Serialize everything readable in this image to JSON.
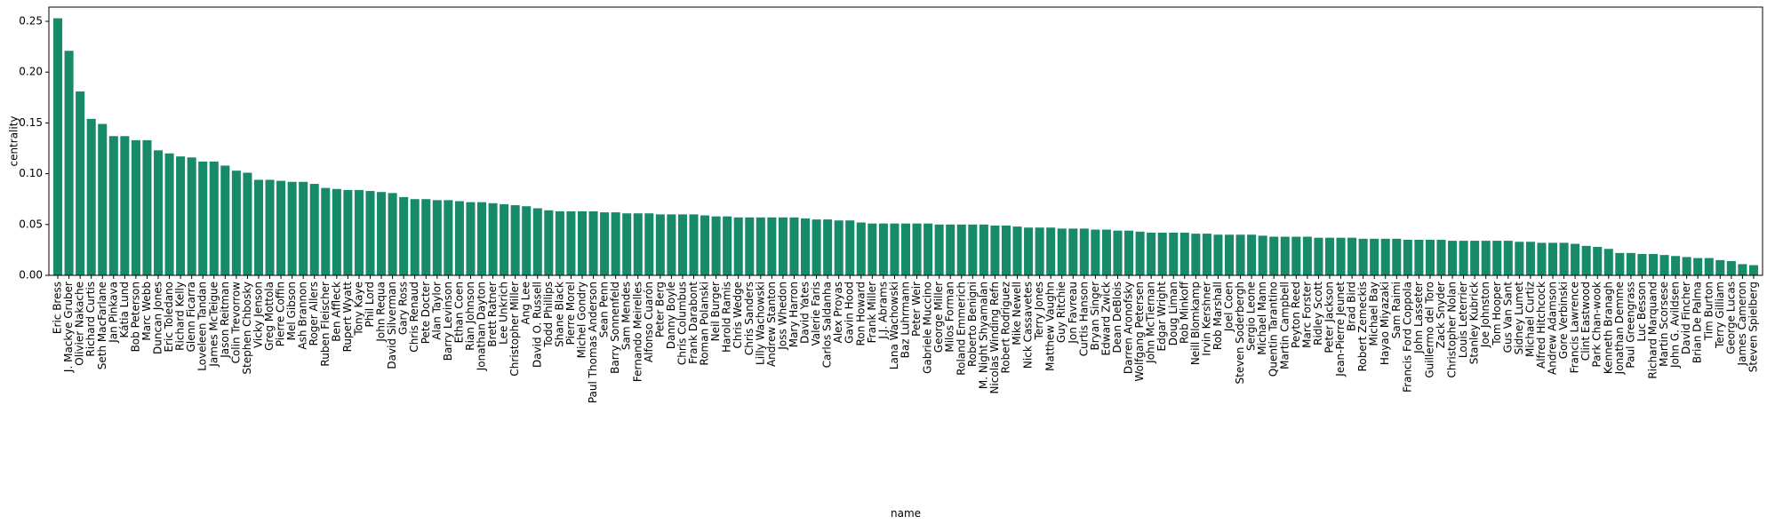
{
  "chart_data": {
    "type": "bar",
    "x_label": "name",
    "y_label": "centrality",
    "color": "#178a69",
    "categories": [
      "Eric Bress",
      "J. Mackye Gruber",
      "Olivier Nakache",
      "Richard Curtis",
      "Seth MacFarlane",
      "Jan Pinkava",
      "Kátia Lund",
      "Bob Peterson",
      "Marc Webb",
      "Duncan Jones",
      "Eric Toledano",
      "Richard Kelly",
      "Glenn Ficarra",
      "Loveleen Tandan",
      "James McTeigue",
      "Jason Reitman",
      "Colin Trevorrow",
      "Stephen Chbosky",
      "Vicky Jenson",
      "Greg Mottola",
      "Pierre Coffin",
      "Mel Gibson",
      "Ash Brannon",
      "Roger Allers",
      "Ruben Fleischer",
      "Ben Affleck",
      "Rupert Wyatt",
      "Tony Kaye",
      "Phil Lord",
      "John Requa",
      "David Silverman",
      "Gary Ross",
      "Chris Renaud",
      "Pete Docter",
      "Alan Taylor",
      "Barry Levinson",
      "Ethan Coen",
      "Rian Johnson",
      "Jonathan Dayton",
      "Brett Ratner",
      "Lee Unkrich",
      "Christopher Miller",
      "Ang Lee",
      "David O. Russell",
      "Todd Phillips",
      "Shane Black",
      "Pierre Morel",
      "Michel Gondry",
      "Paul Thomas Anderson",
      "Sean Penn",
      "Barry Sonnenfeld",
      "Sam Mendes",
      "Fernando Meirelles",
      "Alfonso Cuarón",
      "Peter Berg",
      "Danny Boyle",
      "Chris Columbus",
      "Frank Darabont",
      "Roman Polanski",
      "Neil Burger",
      "Harold Ramis",
      "Chris Wedge",
      "Chris Sanders",
      "Lilly Wachowski",
      "Andrew Stanton",
      "Joss Whedon",
      "Mary Harron",
      "David Yates",
      "Valerie Faris",
      "Carlos Saldanha",
      "Alex Proyas",
      "Gavin Hood",
      "Ron Howard",
      "Frank Miller",
      "J.J. Abrams",
      "Lana Wachowski",
      "Baz Luhrmann",
      "Peter Weir",
      "Gabriele Muccino",
      "George Miller",
      "Milos Forman",
      "Roland Emmerich",
      "Roberto Benigni",
      "M. Night Shyamalan",
      "Nicolas Winding Refn",
      "Robert Rodriguez",
      "Mike Newell",
      "Nick Cassavetes",
      "Terry Jones",
      "Matthew Vaughn",
      "Guy Ritchie",
      "Jon Favreau",
      "Curtis Hanson",
      "Bryan Singer",
      "Edward Zwick",
      "Dean DeBlois",
      "Darren Aronofsky",
      "Wolfgang Petersen",
      "John McTiernan",
      "Edgar Wright",
      "Doug Liman",
      "Rob Minkoff",
      "Neill Blomkamp",
      "Irvin Kershner",
      "Rob Marshall",
      "Joel Coen",
      "Steven Soderbergh",
      "Sergio Leone",
      "Michael Mann",
      "Quentin Tarantino",
      "Martin Campbell",
      "Peyton Reed",
      "Marc Forster",
      "Ridley Scott",
      "Peter Jackson",
      "Jean-Pierre Jeunet",
      "Brad Bird",
      "Robert Zemeckis",
      "Michael Bay",
      "Hayao Miyazaki",
      "Sam Raimi",
      "Francis Ford Coppola",
      "John Lasseter",
      "Guillermo del Toro",
      "Zack Snyder",
      "Christopher Nolan",
      "Louis Leterrier",
      "Stanley Kubrick",
      "Joe Johnston",
      "Tom Hooper",
      "Gus Van Sant",
      "Sidney Lumet",
      "Michael Curtiz",
      "Alfred Hitchcock",
      "Andrew Adamson",
      "Gore Verbinski",
      "Francis Lawrence",
      "Clint Eastwood",
      "Park Chan-wook",
      "Kenneth Branagh",
      "Jonathan Demme",
      "Paul Greengrass",
      "Luc Besson",
      "Richard Marquand",
      "Martin Scorsese",
      "John G. Avildsen",
      "David Fincher",
      "Brian De Palma",
      "Tim Burton",
      "Terry Gilliam",
      "George Lucas",
      "James Cameron",
      "Steven Spielberg"
    ],
    "values": [
      0.253,
      0.221,
      0.181,
      0.154,
      0.149,
      0.137,
      0.137,
      0.133,
      0.133,
      0.123,
      0.12,
      0.117,
      0.116,
      0.112,
      0.112,
      0.108,
      0.103,
      0.101,
      0.094,
      0.094,
      0.093,
      0.092,
      0.092,
      0.09,
      0.086,
      0.085,
      0.084,
      0.084,
      0.083,
      0.082,
      0.081,
      0.077,
      0.075,
      0.075,
      0.074,
      0.074,
      0.073,
      0.072,
      0.072,
      0.071,
      0.07,
      0.069,
      0.068,
      0.066,
      0.064,
      0.063,
      0.063,
      0.063,
      0.063,
      0.062,
      0.062,
      0.061,
      0.061,
      0.061,
      0.06,
      0.06,
      0.06,
      0.06,
      0.059,
      0.058,
      0.058,
      0.057,
      0.057,
      0.057,
      0.057,
      0.057,
      0.057,
      0.056,
      0.055,
      0.055,
      0.054,
      0.054,
      0.052,
      0.051,
      0.051,
      0.051,
      0.051,
      0.051,
      0.051,
      0.05,
      0.05,
      0.05,
      0.05,
      0.05,
      0.049,
      0.049,
      0.048,
      0.047,
      0.047,
      0.047,
      0.046,
      0.046,
      0.046,
      0.045,
      0.045,
      0.044,
      0.044,
      0.043,
      0.042,
      0.042,
      0.042,
      0.042,
      0.041,
      0.041,
      0.04,
      0.04,
      0.04,
      0.04,
      0.039,
      0.038,
      0.038,
      0.038,
      0.038,
      0.037,
      0.037,
      0.037,
      0.037,
      0.036,
      0.036,
      0.036,
      0.036,
      0.035,
      0.035,
      0.035,
      0.035,
      0.034,
      0.034,
      0.034,
      0.034,
      0.034,
      0.034,
      0.033,
      0.033,
      0.032,
      0.032,
      0.032,
      0.031,
      0.029,
      0.028,
      0.026,
      0.022,
      0.022,
      0.021,
      0.021,
      0.02,
      0.019,
      0.018,
      0.017,
      0.017,
      0.015,
      0.014,
      0.011,
      0.01
    ],
    "ylim": [
      0,
      0.264
    ],
    "yticks": [
      {
        "value": 0,
        "label": "0.00"
      },
      0.05,
      {
        "value": 0.1,
        "label": "0.10"
      },
      0.15,
      {
        "value": 0.2,
        "label": "0.20"
      },
      0.25
    ]
  }
}
